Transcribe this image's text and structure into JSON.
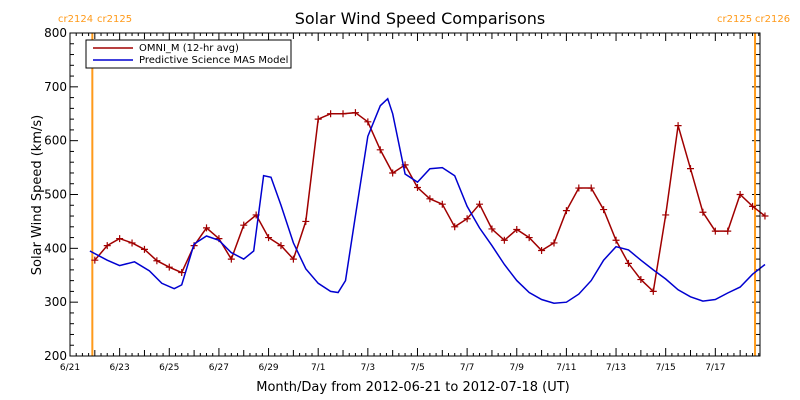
{
  "colors": {
    "omni": "#a00000",
    "mas": "#0000d0",
    "carrington": "#ff9a1a",
    "axis": "#000000"
  },
  "chart_data": {
    "type": "line",
    "title": "Solar Wind Speed Comparisons",
    "xlabel": "Month/Day from 2012-06-21 to 2012-07-18 (UT)",
    "ylabel": "Solar Wind Speed (km/s)",
    "xlim": [
      0,
      27.8
    ],
    "ylim": [
      200,
      800
    ],
    "y_ticks": [
      200,
      300,
      400,
      500,
      600,
      700,
      800
    ],
    "x_ticks": [
      {
        "day": 0,
        "label": "6/21"
      },
      {
        "day": 2,
        "label": "6/23"
      },
      {
        "day": 4,
        "label": "6/25"
      },
      {
        "day": 6,
        "label": "6/27"
      },
      {
        "day": 8,
        "label": "6/29"
      },
      {
        "day": 10,
        "label": "7/1"
      },
      {
        "day": 12,
        "label": "7/3"
      },
      {
        "day": 14,
        "label": "7/5"
      },
      {
        "day": 16,
        "label": "7/7"
      },
      {
        "day": 18,
        "label": "7/9"
      },
      {
        "day": 20,
        "label": "7/11"
      },
      {
        "day": 22,
        "label": "7/13"
      },
      {
        "day": 24,
        "label": "7/15"
      },
      {
        "day": 26,
        "label": "7/17"
      }
    ],
    "legend_position": "top-left",
    "carrington": {
      "left": {
        "day": 0.9,
        "labels": [
          "cr2124",
          "cr2125"
        ]
      },
      "right": {
        "day": 27.6,
        "labels": [
          "cr2125",
          "cr2126"
        ]
      }
    },
    "series": [
      {
        "name": "OMNI_M (12-hr avg)",
        "markers": true,
        "points": [
          [
            1.0,
            378
          ],
          [
            1.5,
            405
          ],
          [
            2.0,
            418
          ],
          [
            2.5,
            410
          ],
          [
            3.0,
            398
          ],
          [
            3.5,
            377
          ],
          [
            4.0,
            365
          ],
          [
            4.5,
            355
          ],
          [
            5.0,
            405
          ],
          [
            5.5,
            438
          ],
          [
            6.0,
            418
          ],
          [
            6.5,
            380
          ],
          [
            7.0,
            443
          ],
          [
            7.5,
            462
          ],
          [
            8.0,
            420
          ],
          [
            8.5,
            405
          ],
          [
            9.0,
            380
          ],
          [
            9.5,
            450
          ],
          [
            10.0,
            640
          ],
          [
            10.5,
            650
          ],
          [
            11.0,
            650
          ],
          [
            11.5,
            652
          ],
          [
            12.0,
            635
          ],
          [
            12.5,
            583
          ],
          [
            13.0,
            540
          ],
          [
            13.5,
            555
          ],
          [
            14.0,
            513
          ],
          [
            14.5,
            492
          ],
          [
            15.0,
            482
          ],
          [
            15.5,
            440
          ],
          [
            16.0,
            455
          ],
          [
            16.5,
            482
          ],
          [
            17.0,
            436
          ],
          [
            17.5,
            415
          ],
          [
            18.0,
            435
          ],
          [
            18.5,
            420
          ],
          [
            19.0,
            396
          ],
          [
            19.5,
            410
          ],
          [
            20.0,
            470
          ],
          [
            20.5,
            512
          ],
          [
            21.0,
            512
          ],
          [
            21.5,
            472
          ],
          [
            22.0,
            415
          ],
          [
            22.5,
            372
          ],
          [
            23.0,
            342
          ],
          [
            23.5,
            320
          ],
          [
            24.0,
            462
          ],
          [
            24.5,
            628
          ],
          [
            25.0,
            548
          ],
          [
            25.5,
            467
          ],
          [
            26.0,
            432
          ],
          [
            26.5,
            432
          ],
          [
            27.0,
            500
          ],
          [
            27.5,
            478
          ],
          [
            28.0,
            460
          ]
        ]
      },
      {
        "name": "Predictive Science MAS Model",
        "markers": false,
        "points": [
          [
            0.8,
            395
          ],
          [
            1.5,
            378
          ],
          [
            2.0,
            368
          ],
          [
            2.6,
            375
          ],
          [
            3.2,
            358
          ],
          [
            3.7,
            335
          ],
          [
            4.2,
            325
          ],
          [
            4.5,
            332
          ],
          [
            5.0,
            408
          ],
          [
            5.5,
            423
          ],
          [
            6.0,
            415
          ],
          [
            6.5,
            392
          ],
          [
            7.0,
            380
          ],
          [
            7.4,
            395
          ],
          [
            7.8,
            535
          ],
          [
            8.1,
            532
          ],
          [
            8.5,
            480
          ],
          [
            9.0,
            410
          ],
          [
            9.5,
            362
          ],
          [
            10.0,
            335
          ],
          [
            10.5,
            320
          ],
          [
            10.8,
            318
          ],
          [
            11.1,
            340
          ],
          [
            11.5,
            460
          ],
          [
            12.0,
            608
          ],
          [
            12.5,
            665
          ],
          [
            12.8,
            678
          ],
          [
            13.0,
            650
          ],
          [
            13.5,
            538
          ],
          [
            14.0,
            523
          ],
          [
            14.5,
            548
          ],
          [
            15.0,
            550
          ],
          [
            15.5,
            535
          ],
          [
            16.0,
            478
          ],
          [
            16.5,
            438
          ],
          [
            17.0,
            405
          ],
          [
            17.5,
            370
          ],
          [
            18.0,
            340
          ],
          [
            18.5,
            318
          ],
          [
            19.0,
            305
          ],
          [
            19.5,
            298
          ],
          [
            20.0,
            300
          ],
          [
            20.5,
            315
          ],
          [
            21.0,
            340
          ],
          [
            21.5,
            378
          ],
          [
            22.0,
            403
          ],
          [
            22.5,
            397
          ],
          [
            23.0,
            378
          ],
          [
            23.5,
            360
          ],
          [
            24.0,
            343
          ],
          [
            24.5,
            323
          ],
          [
            25.0,
            310
          ],
          [
            25.5,
            302
          ],
          [
            26.0,
            305
          ],
          [
            26.5,
            317
          ],
          [
            27.0,
            328
          ],
          [
            27.5,
            352
          ],
          [
            28.0,
            370
          ]
        ]
      }
    ]
  }
}
